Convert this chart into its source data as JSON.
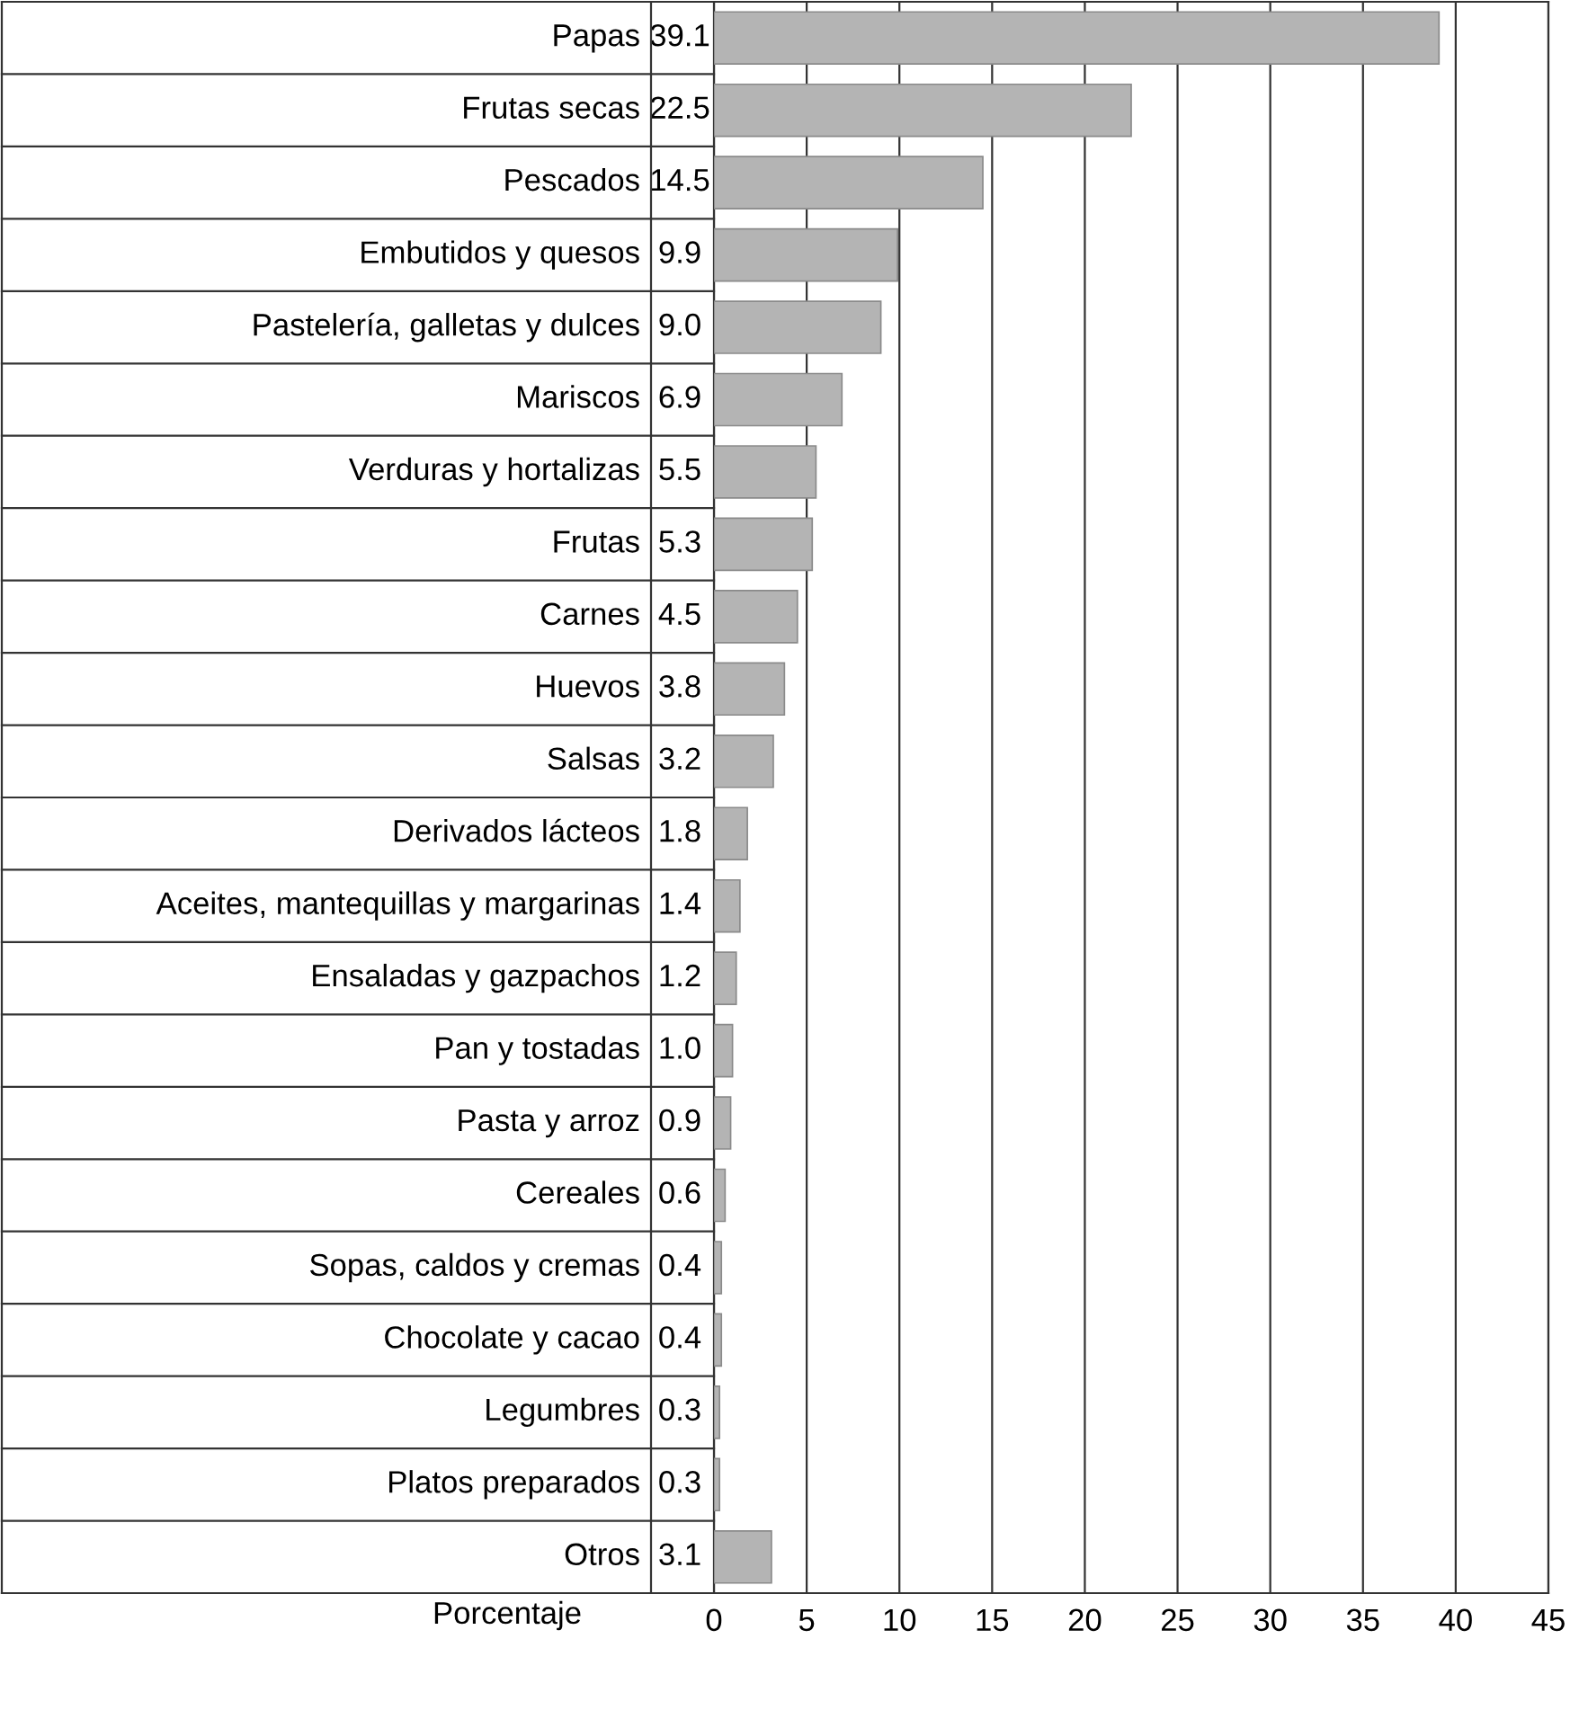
{
  "chart_data": {
    "type": "bar",
    "orientation": "horizontal",
    "xlabel": "Porcentaje",
    "categories": [
      "Papas",
      "Frutas secas",
      "Pescados",
      "Embutidos y quesos",
      "Pastelería, galletas y dulces",
      "Mariscos",
      "Verduras y hortalizas",
      "Frutas",
      "Carnes",
      "Huevos",
      "Salsas",
      "Derivados lácteos",
      "Aceites, mantequillas y margarinas",
      "Ensaladas y gazpachos",
      "Pan y tostadas",
      "Pasta y arroz",
      "Cereales",
      "Sopas, caldos y cremas",
      "Chocolate y cacao",
      "Legumbres",
      "Platos preparados",
      "Otros"
    ],
    "values": [
      39.1,
      22.5,
      14.5,
      9.9,
      9.0,
      6.9,
      5.5,
      5.3,
      4.5,
      3.8,
      3.2,
      1.8,
      1.4,
      1.2,
      1.0,
      0.9,
      0.6,
      0.4,
      0.4,
      0.3,
      0.3,
      3.1
    ],
    "value_labels": [
      "39.1",
      "22.5",
      "14.5",
      "9.9",
      "9.0",
      "6.9",
      "5.5",
      "5.3",
      "4.5",
      "3.8",
      "3.2",
      "1.8",
      "1.4",
      "1.2",
      "1.0",
      "0.9",
      "0.6",
      "0.4",
      "0.4",
      "0.3",
      "0.3",
      "3.1"
    ],
    "color": "#b4b4b4",
    "xlim": [
      0,
      45
    ],
    "xticks": [
      0,
      5,
      10,
      15,
      20,
      25,
      30,
      35,
      40,
      45
    ],
    "grid": "x"
  }
}
